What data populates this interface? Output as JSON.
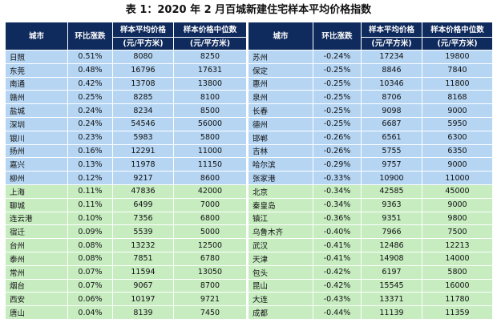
{
  "title": "表 1：2020 年 2 月百城新建住宅样本平均价格指数",
  "headers": {
    "city": "城市",
    "change": "环比涨跌",
    "avg_price_l1": "样本平均价格",
    "avg_price_l2": "(元/平方米)",
    "median_price_l1": "样本价格中位数",
    "median_price_l2": "(元/平方米)"
  },
  "left_rows": [
    {
      "city": "日照",
      "change": "0.51%",
      "avg": "8080",
      "median": "8250",
      "color": "blue"
    },
    {
      "city": "东莞",
      "change": "0.48%",
      "avg": "16796",
      "median": "17631",
      "color": "blue"
    },
    {
      "city": "南通",
      "change": "0.42%",
      "avg": "13708",
      "median": "13800",
      "color": "blue"
    },
    {
      "city": "赣州",
      "change": "0.25%",
      "avg": "8285",
      "median": "8100",
      "color": "blue"
    },
    {
      "city": "盐城",
      "change": "0.24%",
      "avg": "8234",
      "median": "8500",
      "color": "blue"
    },
    {
      "city": "深圳",
      "change": "0.24%",
      "avg": "54546",
      "median": "56000",
      "color": "blue"
    },
    {
      "city": "银川",
      "change": "0.23%",
      "avg": "5983",
      "median": "5800",
      "color": "blue"
    },
    {
      "city": "扬州",
      "change": "0.16%",
      "avg": "12291",
      "median": "11000",
      "color": "blue"
    },
    {
      "city": "嘉兴",
      "change": "0.13%",
      "avg": "11978",
      "median": "11150",
      "color": "blue"
    },
    {
      "city": "柳州",
      "change": "0.12%",
      "avg": "9217",
      "median": "8600",
      "color": "blue"
    },
    {
      "city": "上海",
      "change": "0.11%",
      "avg": "47836",
      "median": "42000",
      "color": "green"
    },
    {
      "city": "聊城",
      "change": "0.11%",
      "avg": "6499",
      "median": "7000",
      "color": "green"
    },
    {
      "city": "连云港",
      "change": "0.10%",
      "avg": "7356",
      "median": "6800",
      "color": "green"
    },
    {
      "city": "宿迁",
      "change": "0.09%",
      "avg": "5539",
      "median": "5000",
      "color": "green"
    },
    {
      "city": "台州",
      "change": "0.08%",
      "avg": "13232",
      "median": "12500",
      "color": "green"
    },
    {
      "city": "泰州",
      "change": "0.08%",
      "avg": "7851",
      "median": "6780",
      "color": "green"
    },
    {
      "city": "常州",
      "change": "0.07%",
      "avg": "11594",
      "median": "13050",
      "color": "green"
    },
    {
      "city": "烟台",
      "change": "0.07%",
      "avg": "9067",
      "median": "8700",
      "color": "green"
    },
    {
      "city": "西安",
      "change": "0.06%",
      "avg": "10197",
      "median": "9721",
      "color": "green"
    },
    {
      "city": "唐山",
      "change": "0.04%",
      "avg": "8139",
      "median": "7450",
      "color": "green"
    }
  ],
  "right_rows": [
    {
      "city": "苏州",
      "change": "-0.24%",
      "avg": "17234",
      "median": "19800"
    },
    {
      "city": "保定",
      "change": "-0.25%",
      "avg": "8846",
      "median": "7840"
    },
    {
      "city": "惠州",
      "change": "-0.25%",
      "avg": "10346",
      "median": "11800"
    },
    {
      "city": "泉州",
      "change": "-0.25%",
      "avg": "8706",
      "median": "8168"
    },
    {
      "city": "长春",
      "change": "-0.25%",
      "avg": "9098",
      "median": "9000"
    },
    {
      "city": "德州",
      "change": "-0.25%",
      "avg": "6687",
      "median": "5950"
    },
    {
      "city": "邯郸",
      "change": "-0.26%",
      "avg": "6561",
      "median": "6300"
    },
    {
      "city": "吉林",
      "change": "-0.26%",
      "avg": "5755",
      "median": "6350"
    },
    {
      "city": "哈尔滨",
      "change": "-0.29%",
      "avg": "9757",
      "median": "9000"
    },
    {
      "city": "张家港",
      "change": "-0.33%",
      "avg": "10900",
      "median": "11000"
    },
    {
      "city": "北京",
      "change": "-0.34%",
      "avg": "42585",
      "median": "45000"
    },
    {
      "city": "秦皇岛",
      "change": "-0.34%",
      "avg": "9363",
      "median": "9000"
    },
    {
      "city": "镇江",
      "change": "-0.36%",
      "avg": "9351",
      "median": "9800"
    },
    {
      "city": "乌鲁木齐",
      "change": "-0.40%",
      "avg": "7966",
      "median": "7500"
    },
    {
      "city": "武汉",
      "change": "-0.41%",
      "avg": "12486",
      "median": "12213"
    },
    {
      "city": "天津",
      "change": "-0.41%",
      "avg": "14908",
      "median": "14000"
    },
    {
      "city": "包头",
      "change": "-0.42%",
      "avg": "6197",
      "median": "5800"
    },
    {
      "city": "昆山",
      "change": "-0.42%",
      "avg": "15545",
      "median": "16000"
    },
    {
      "city": "大连",
      "change": "-0.43%",
      "avg": "13371",
      "median": "11780"
    },
    {
      "city": "成都",
      "change": "-0.44%",
      "avg": "11139",
      "median": "11359"
    }
  ],
  "colors": {
    "header_bg": "#0f2a5c",
    "top_rows_bg": "#b5d5f3",
    "bottom_rows_bg": "#c6ecc0"
  }
}
